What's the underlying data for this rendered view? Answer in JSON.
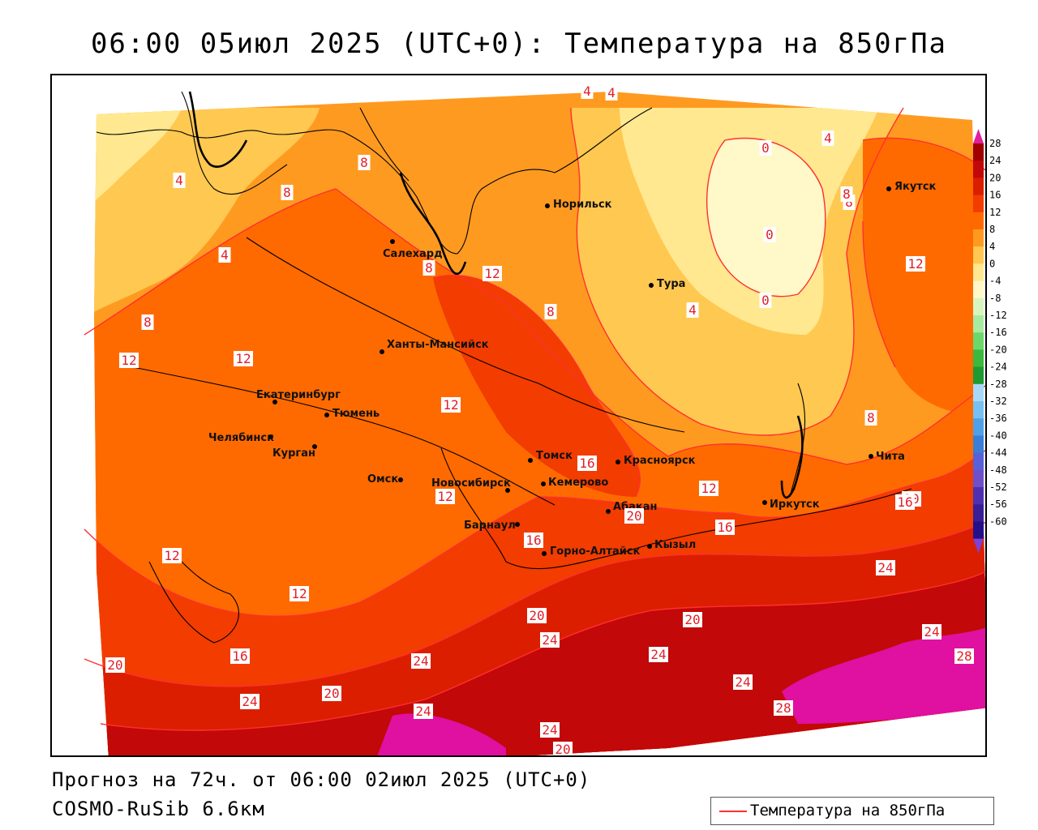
{
  "title": "06:00 05июл 2025 (UTC+0): Температура на 850гПа",
  "footer": {
    "forecast": "Прогноз на 72ч. от 06:00 02июл 2025 (UTC+0)",
    "model": "COSMO-RuSib 6.6км"
  },
  "legend": {
    "label": "Температура на 850гПа",
    "line_color": "#ff3030"
  },
  "colorbar": {
    "ticks": [
      "28",
      "24",
      "20",
      "16",
      "12",
      "8",
      "4",
      "0",
      "-4",
      "-8",
      "-12",
      "-16",
      "-20",
      "-24",
      "-28",
      "-32",
      "-36",
      "-40",
      "-44",
      "-48",
      "-52",
      "-56",
      "-60"
    ],
    "colors": [
      "#a00000",
      "#c20808",
      "#dc1e00",
      "#f23c00",
      "#ff6a00",
      "#ff9a20",
      "#ffc850",
      "#ffe890",
      "#fff8c8",
      "#d8f5c0",
      "#a8eaa0",
      "#6cd86c",
      "#3cb83c",
      "#1e9a30",
      "#a8d8f8",
      "#78c0f0",
      "#50a0e8",
      "#3a7ed8",
      "#5a60d8",
      "#7050c8",
      "#5030b0",
      "#3a1e98",
      "#24108a"
    ],
    "max_arrow_color": "#e020a0",
    "min_arrow_color": "#8040d0"
  },
  "cities": [
    {
      "name": "Норильск"
    },
    {
      "name": "Салехард"
    },
    {
      "name": "Якутск"
    },
    {
      "name": "Тура"
    },
    {
      "name": "Ханты-Мансийск"
    },
    {
      "name": "Екатеринбург"
    },
    {
      "name": "Тюмень"
    },
    {
      "name": "Челябинск"
    },
    {
      "name": "Курган"
    },
    {
      "name": "Омск"
    },
    {
      "name": "Новосибирск"
    },
    {
      "name": "Томск"
    },
    {
      "name": "Красноярск"
    },
    {
      "name": "Кемерово"
    },
    {
      "name": "Абакан"
    },
    {
      "name": "Барнаул"
    },
    {
      "name": "Горно-Алтайск"
    },
    {
      "name": "Кызыл"
    },
    {
      "name": "Иркутск"
    },
    {
      "name": "Чита"
    }
  ],
  "contour_labels": [
    "4",
    "4",
    "8",
    "8",
    "0",
    "0",
    "0",
    "4",
    "4",
    "8",
    "8",
    "12",
    "8",
    "8",
    "12",
    "12",
    "12",
    "12",
    "16",
    "16",
    "12",
    "16",
    "20",
    "20",
    "24",
    "24",
    "28",
    "28",
    "24",
    "20",
    "16",
    "12",
    "8",
    "12",
    "16",
    "20",
    "24",
    "24",
    "24",
    "20",
    "20",
    "24",
    "24",
    "24",
    "12",
    "20",
    "24",
    "20",
    "4",
    "4",
    "8"
  ],
  "colors": {
    "t28": "#a00000",
    "t24": "#c20808",
    "t20": "#dc1e00",
    "t16": "#f23c00",
    "t12": "#ff6a00",
    "t8": "#ff9a20",
    "t4": "#ffc850",
    "t0": "#ffe890",
    "hot": "#e010a0",
    "contour": "#ff3030"
  }
}
